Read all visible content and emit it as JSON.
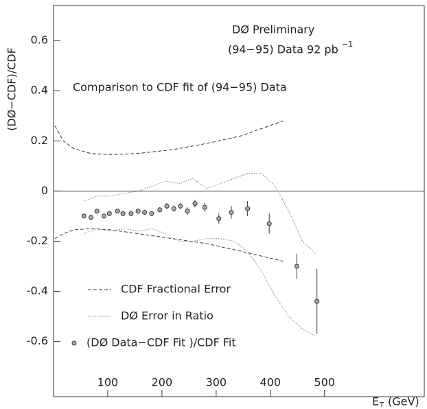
{
  "chart_data": {
    "type": "line",
    "title": "DØ Preliminary",
    "subtitle": {
      "main": "(94−95) Data 92 pb",
      "sup": "−1"
    },
    "annotation": "Comparison to CDF fit of (94−95) Data",
    "y_label": "(DØ−CDF)/CDF",
    "x_label": {
      "main": "E",
      "sub": "T",
      "unit": "(GeV)"
    },
    "xlim": [
      0,
      684
    ],
    "ylim": [
      -0.82,
      0.74
    ],
    "xticks": [
      100,
      200,
      300,
      400,
      500
    ],
    "yticks": [
      -0.6,
      -0.4,
      -0.2,
      0,
      0.2,
      0.4,
      0.6
    ],
    "series": [
      {
        "name": "CDF Fractional Error",
        "style": "dashed",
        "color": "#333333",
        "lines": [
          {
            "x": [
              2.5,
              18,
              37,
              68,
              106,
              156,
              220,
              283,
              346,
              424
            ],
            "values": [
              0.26,
              0.2,
              0.17,
              0.15,
              0.145,
              0.15,
              0.165,
              0.19,
              0.22,
              0.28
            ]
          },
          {
            "x": [
              2.5,
              18,
              37,
              68,
              106,
              156,
              220,
              283,
              346,
              424
            ],
            "values": [
              -0.19,
              -0.17,
              -0.155,
              -0.15,
              -0.155,
              -0.17,
              -0.19,
              -0.21,
              -0.24,
              -0.28
            ]
          }
        ]
      },
      {
        "name": "DØ Error in Ratio",
        "style": "dotted",
        "color": "#777777",
        "lines": [
          {
            "x": [
              56,
              81,
              106,
              131,
              156,
              182,
              207,
              232,
              257,
              283,
              308,
              333,
              358,
              384,
              409,
              434,
              459,
              484
            ],
            "values": [
              -0.04,
              -0.02,
              -0.02,
              -0.01,
              0,
              0.02,
              0.04,
              0.03,
              0.05,
              0.01,
              0.03,
              0.05,
              0.07,
              0.07,
              0.02,
              -0.08,
              -0.2,
              -0.25
            ]
          },
          {
            "x": [
              56,
              81,
              106,
              131,
              156,
              182,
              207,
              232,
              257,
              283,
              308,
              333,
              358,
              384,
              409,
              434,
              459,
              484
            ],
            "values": [
              -0.17,
              -0.15,
              -0.16,
              -0.15,
              -0.16,
              -0.15,
              -0.17,
              -0.2,
              -0.2,
              -0.19,
              -0.19,
              -0.2,
              -0.24,
              -0.32,
              -0.42,
              -0.5,
              -0.55,
              -0.58
            ]
          }
        ]
      },
      {
        "name": "(DØ Data−CDF Fit )/CDF Fit",
        "style": "points",
        "color": "#333333",
        "x": [
          56,
          69,
          80,
          93,
          103,
          118,
          128,
          143,
          156,
          168,
          181,
          196,
          209,
          222,
          234,
          247,
          261,
          279,
          305,
          328,
          358,
          398,
          449,
          486
        ],
        "values": [
          -0.1,
          -0.105,
          -0.08,
          -0.1,
          -0.09,
          -0.08,
          -0.09,
          -0.09,
          -0.08,
          -0.085,
          -0.09,
          -0.075,
          -0.06,
          -0.07,
          -0.06,
          -0.08,
          -0.05,
          -0.065,
          -0.11,
          -0.085,
          -0.07,
          -0.13,
          -0.3,
          -0.44
        ],
        "errors": [
          0.01,
          0.01,
          0.01,
          0.01,
          0.01,
          0.01,
          0.01,
          0.01,
          0.01,
          0.01,
          0.01,
          0.01,
          0.012,
          0.012,
          0.012,
          0.015,
          0.015,
          0.018,
          0.02,
          0.025,
          0.03,
          0.04,
          0.05,
          0.13
        ]
      }
    ]
  }
}
